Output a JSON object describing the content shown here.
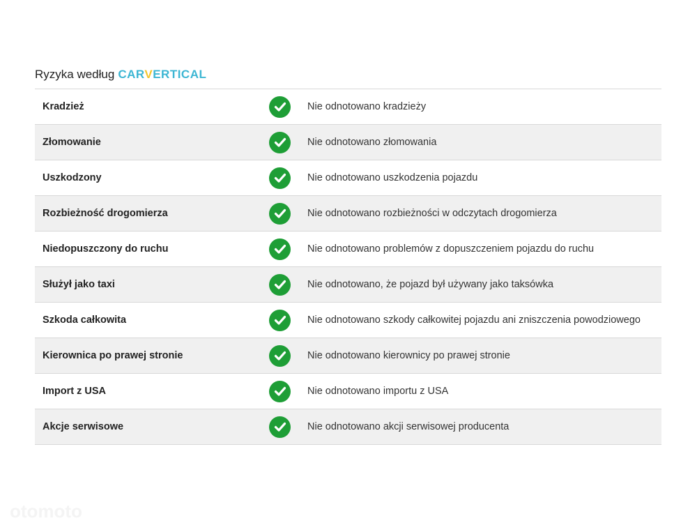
{
  "header": {
    "title": "Ryzyka według",
    "logo": "CARVERTICAL"
  },
  "colors": {
    "check": "#1e9e36",
    "logo": "#3cb6d3",
    "logo_accent": "#f2c62f"
  },
  "rows": [
    {
      "label": "Kradzież",
      "icon": "check-circle-icon",
      "desc": "Nie odnotowano kradzieży"
    },
    {
      "label": "Złomowanie",
      "icon": "check-circle-icon",
      "desc": "Nie odnotowano złomowania"
    },
    {
      "label": "Uszkodzony",
      "icon": "check-circle-icon",
      "desc": "Nie odnotowano uszkodzenia pojazdu"
    },
    {
      "label": "Rozbieżność drogomierza",
      "icon": "check-circle-icon",
      "desc": "Nie odnotowano rozbieżności w odczytach drogomierza"
    },
    {
      "label": "Niedopuszczony do ruchu",
      "icon": "check-circle-icon",
      "desc": "Nie odnotowano problemów z dopuszczeniem pojazdu do ruchu"
    },
    {
      "label": "Służył jako taxi",
      "icon": "check-circle-icon",
      "desc": "Nie odnotowano, że pojazd był używany jako taksówka"
    },
    {
      "label": "Szkoda całkowita",
      "icon": "check-circle-icon",
      "desc": "Nie odnotowano szkody całkowitej pojazdu ani zniszczenia powodziowego"
    },
    {
      "label": "Kierownica po prawej stronie",
      "icon": "check-circle-icon",
      "desc": "Nie odnotowano kierownicy po prawej stronie"
    },
    {
      "label": "Import z USA",
      "icon": "check-circle-icon",
      "desc": "Nie odnotowano importu z USA"
    },
    {
      "label": "Akcje serwisowe",
      "icon": "check-circle-icon",
      "desc": "Nie odnotowano akcji serwisowej producenta"
    }
  ],
  "watermark": "otomoto"
}
